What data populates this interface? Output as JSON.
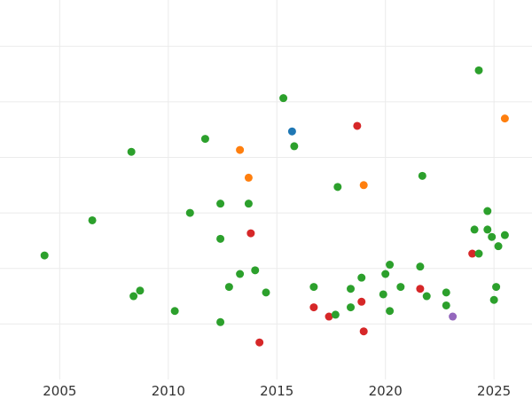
{
  "chart_data": {
    "type": "scatter",
    "title": "",
    "xlabel": "",
    "ylabel": "",
    "xlim": [
      2002.25,
      2026.75
    ],
    "ylim": [
      -15,
      190
    ],
    "xticks": [
      2005,
      2010,
      2015,
      2020,
      2025
    ],
    "xtick_labels": [
      "2005",
      "2010",
      "2015",
      "2020",
      "2025"
    ],
    "yticks": [
      15,
      45,
      75,
      105,
      135,
      165
    ],
    "grid": true,
    "legend": "none",
    "colors": {
      "green": "#2ca02c",
      "red": "#d62728",
      "orange": "#ff7f0e",
      "blue": "#1f77b4",
      "purple": "#9467bd"
    },
    "points": [
      {
        "x": 2004.3,
        "y": 52,
        "c": "green"
      },
      {
        "x": 2006.5,
        "y": 71,
        "c": "green"
      },
      {
        "x": 2008.3,
        "y": 108,
        "c": "green"
      },
      {
        "x": 2008.4,
        "y": 30,
        "c": "green"
      },
      {
        "x": 2008.7,
        "y": 33,
        "c": "green"
      },
      {
        "x": 2010.3,
        "y": 22,
        "c": "green"
      },
      {
        "x": 2011.0,
        "y": 75,
        "c": "green"
      },
      {
        "x": 2011.7,
        "y": 115,
        "c": "green"
      },
      {
        "x": 2012.4,
        "y": 80,
        "c": "green"
      },
      {
        "x": 2012.4,
        "y": 61,
        "c": "green"
      },
      {
        "x": 2012.4,
        "y": 16,
        "c": "green"
      },
      {
        "x": 2012.8,
        "y": 35,
        "c": "green"
      },
      {
        "x": 2013.3,
        "y": 42,
        "c": "green"
      },
      {
        "x": 2013.3,
        "y": 109,
        "c": "orange"
      },
      {
        "x": 2013.7,
        "y": 94,
        "c": "orange"
      },
      {
        "x": 2013.7,
        "y": 80,
        "c": "green"
      },
      {
        "x": 2013.8,
        "y": 64,
        "c": "red"
      },
      {
        "x": 2014.0,
        "y": 44,
        "c": "green"
      },
      {
        "x": 2014.2,
        "y": 5,
        "c": "red"
      },
      {
        "x": 2014.5,
        "y": 32,
        "c": "green"
      },
      {
        "x": 2015.3,
        "y": 137,
        "c": "green"
      },
      {
        "x": 2015.7,
        "y": 119,
        "c": "blue"
      },
      {
        "x": 2015.8,
        "y": 111,
        "c": "green"
      },
      {
        "x": 2016.7,
        "y": 35,
        "c": "green"
      },
      {
        "x": 2016.7,
        "y": 24,
        "c": "red"
      },
      {
        "x": 2017.4,
        "y": 19,
        "c": "red"
      },
      {
        "x": 2017.7,
        "y": 20,
        "c": "green"
      },
      {
        "x": 2017.8,
        "y": 89,
        "c": "green"
      },
      {
        "x": 2018.4,
        "y": 34,
        "c": "green"
      },
      {
        "x": 2018.4,
        "y": 24,
        "c": "green"
      },
      {
        "x": 2018.7,
        "y": 122,
        "c": "red"
      },
      {
        "x": 2018.9,
        "y": 27,
        "c": "red"
      },
      {
        "x": 2018.9,
        "y": 40,
        "c": "green"
      },
      {
        "x": 2019.0,
        "y": 90,
        "c": "orange"
      },
      {
        "x": 2019.0,
        "y": 11,
        "c": "red"
      },
      {
        "x": 2019.9,
        "y": 31,
        "c": "green"
      },
      {
        "x": 2020.0,
        "y": 42,
        "c": "green"
      },
      {
        "x": 2020.2,
        "y": 47,
        "c": "green"
      },
      {
        "x": 2020.2,
        "y": 22,
        "c": "green"
      },
      {
        "x": 2020.7,
        "y": 35,
        "c": "green"
      },
      {
        "x": 2021.6,
        "y": 46,
        "c": "green"
      },
      {
        "x": 2021.6,
        "y": 34,
        "c": "red"
      },
      {
        "x": 2021.7,
        "y": 95,
        "c": "green"
      },
      {
        "x": 2021.9,
        "y": 30,
        "c": "green"
      },
      {
        "x": 2022.8,
        "y": 32,
        "c": "green"
      },
      {
        "x": 2022.8,
        "y": 25,
        "c": "green"
      },
      {
        "x": 2023.1,
        "y": 19,
        "c": "purple"
      },
      {
        "x": 2024.0,
        "y": 53,
        "c": "red"
      },
      {
        "x": 2024.1,
        "y": 66,
        "c": "green"
      },
      {
        "x": 2024.3,
        "y": 53,
        "c": "green"
      },
      {
        "x": 2024.3,
        "y": 152,
        "c": "green"
      },
      {
        "x": 2024.7,
        "y": 66,
        "c": "green"
      },
      {
        "x": 2024.7,
        "y": 76,
        "c": "green"
      },
      {
        "x": 2024.9,
        "y": 62,
        "c": "green"
      },
      {
        "x": 2025.0,
        "y": 28,
        "c": "green"
      },
      {
        "x": 2025.1,
        "y": 35,
        "c": "green"
      },
      {
        "x": 2025.2,
        "y": 57,
        "c": "green"
      },
      {
        "x": 2025.5,
        "y": 126,
        "c": "orange"
      },
      {
        "x": 2025.5,
        "y": 63,
        "c": "green"
      }
    ]
  }
}
